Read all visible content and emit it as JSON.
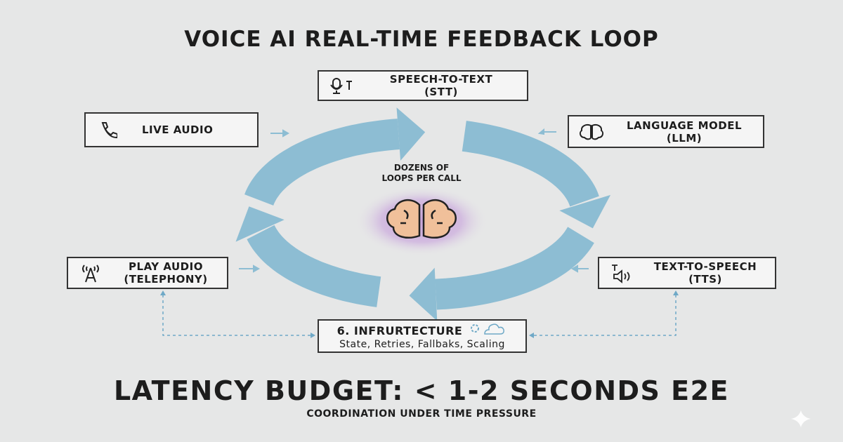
{
  "title": "VOICE AI REAL-TIME FEEDBACK LOOP",
  "center_text": [
    "DOZENS OF",
    "LOOPS PER CALL"
  ],
  "nodes": {
    "stt": {
      "line1": "SPEECH-TO-TEXT",
      "line2": "(STT)",
      "icon": "microphone-icon"
    },
    "live_audio": {
      "line1": "LIVE AUDIO",
      "icon": "phone-icon"
    },
    "llm": {
      "line1": "LANGUAGE MODEL",
      "line2": "(LLM)",
      "icon": "brain-icon"
    },
    "play_audio": {
      "line1": "PLAY AUDIO",
      "line2": "(TELEPHONY)",
      "icon": "antenna-icon"
    },
    "tts": {
      "line1": "TEXT-TO-SPEECH",
      "line2": "(TTS)",
      "icon": "speaker-icon"
    },
    "infra": {
      "line1": "6. INFRURTECTURE",
      "line2": "State, Retries, Fallbaks, Scaling",
      "icon": "gear-cloud-icon"
    }
  },
  "latency": "LATENCY BUDGET: < 1-2 SECONDS E2E",
  "subtitle": "COORDINATION UNDER TIME PRESSURE",
  "colors": {
    "loop": "#8dbdd3",
    "background": "#e6e7e7",
    "border": "#333333"
  }
}
